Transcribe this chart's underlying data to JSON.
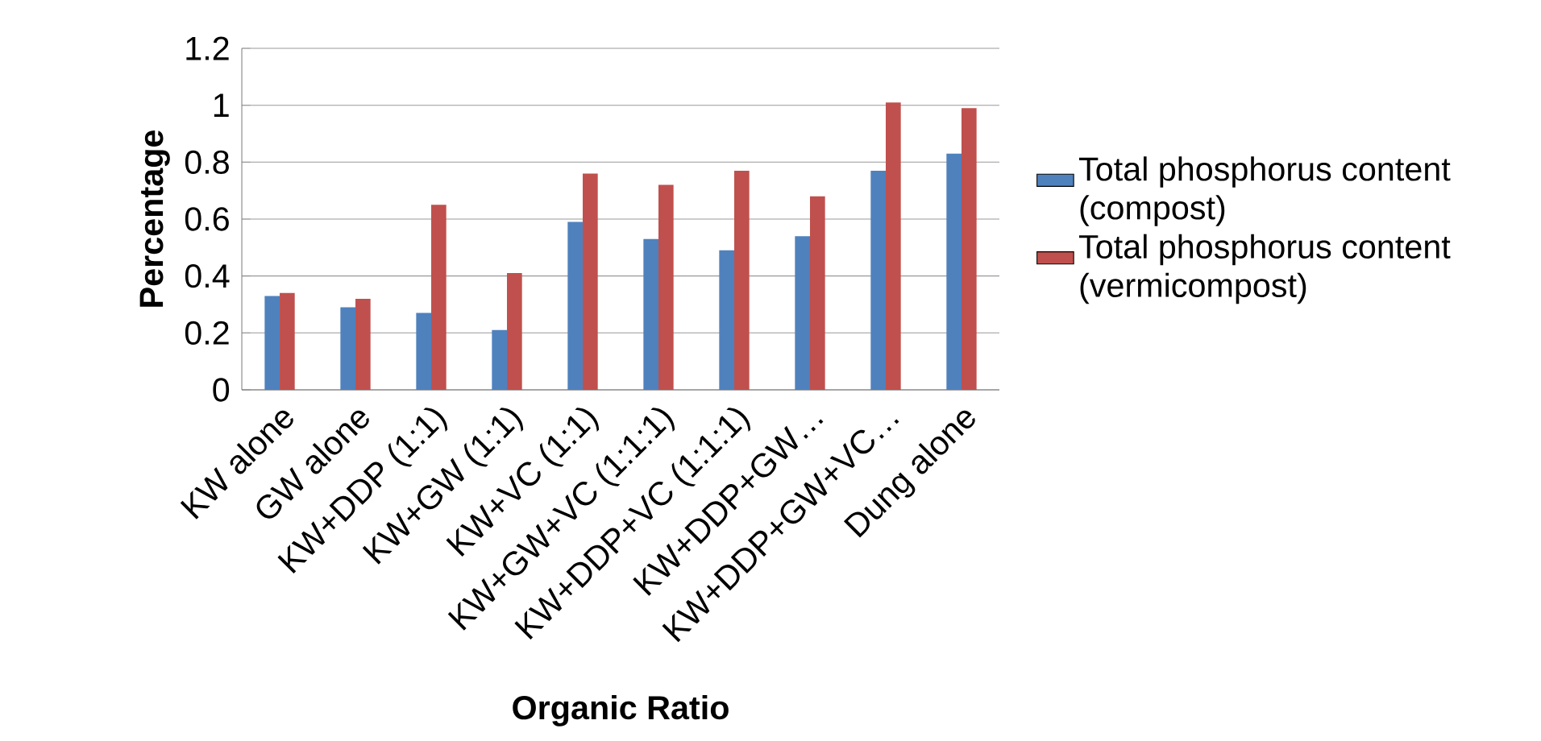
{
  "chart_data": {
    "type": "bar",
    "xlabel": "Organic Ratio",
    "ylabel": "Percentage",
    "categories": [
      "KW alone",
      "GW alone",
      "KW+DDP (1:1)",
      "KW+GW (1:1)",
      "KW+VC (1:1)",
      "KW+GW+VC (1:1:1)",
      "KW+DDP+VC (1:1:1)",
      "KW+DDP+GW…",
      "KW+DDP+GW+VC…",
      "Dung alone"
    ],
    "series": [
      {
        "name": "Total phosphorus content (compost)",
        "color": "#4f81bd",
        "values": [
          0.33,
          0.29,
          0.27,
          0.21,
          0.59,
          0.53,
          0.49,
          0.54,
          0.77,
          0.83
        ]
      },
      {
        "name": "Total phosphorus content (vermicompost)",
        "color": "#c0504d",
        "values": [
          0.34,
          0.32,
          0.65,
          0.41,
          0.76,
          0.72,
          0.77,
          0.68,
          1.01,
          0.99
        ]
      }
    ],
    "ylim": [
      0,
      1.2
    ],
    "yticks": [
      0,
      0.2,
      0.4,
      0.6,
      0.8,
      1,
      1.2
    ],
    "grid": "y",
    "legend": "right"
  }
}
